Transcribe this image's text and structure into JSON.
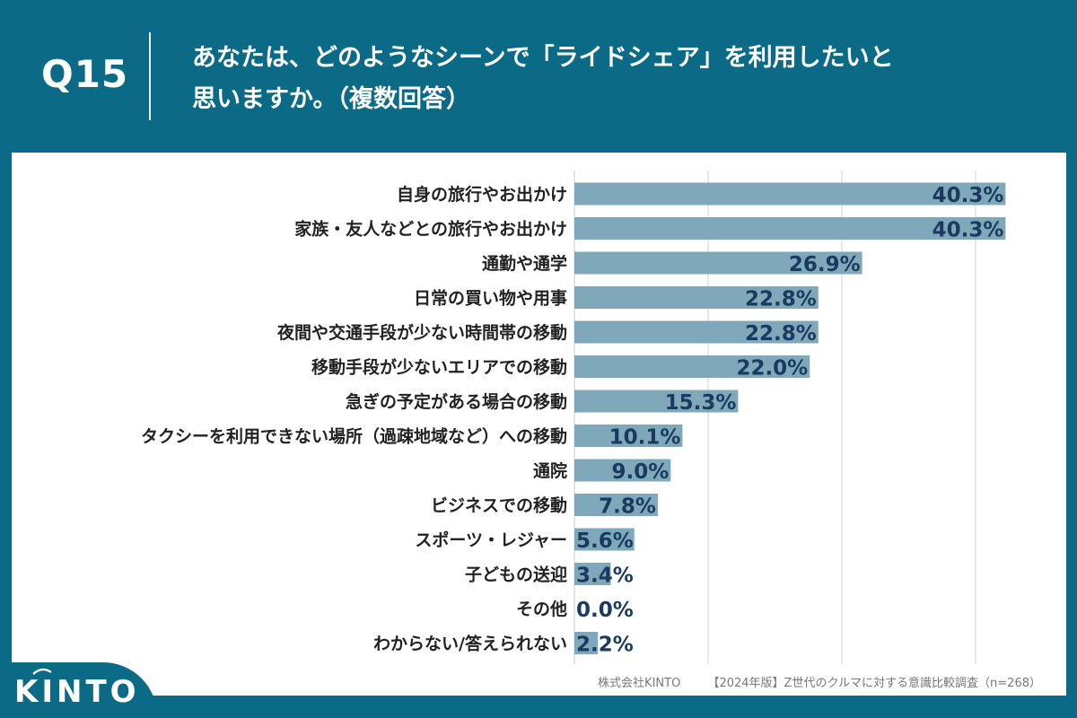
{
  "header": {
    "question_number": "Q15",
    "title_line1": "あなたは、どのようなシーンで「ライドシェア」を利用したいと",
    "title_line2": "思いますか。（複数回答）"
  },
  "footer": {
    "company": "株式会社KINTO",
    "survey": "【2024年版】Z世代のクルマに対する意識比較調査（n=268）"
  },
  "logo": {
    "text": "KINTO"
  },
  "colors": {
    "background": "#0b6a86",
    "panel": "#ffffff",
    "bar": "#7fa8ba",
    "value_text": "#1a3a5e",
    "grid": "#d0d0d0"
  },
  "chart_data": {
    "type": "bar",
    "orientation": "horizontal",
    "categories": [
      "自身の旅行やお出かけ",
      "家族・友人などとの旅行やお出かけ",
      "通勤や通学",
      "日常の買い物や用事",
      "夜間や交通手段が少ない時間帯の移動",
      "移動手段が少ないエリアでの移動",
      "急ぎの予定がある場合の移動",
      "タクシーを利用できない場所（過疎地域など）への移動",
      "通院",
      "ビジネスでの移動",
      "スポーツ・レジャー",
      "子どもの送迎",
      "その他",
      "わからない/答えられない"
    ],
    "values": [
      40.3,
      40.3,
      26.9,
      22.8,
      22.8,
      22.0,
      15.3,
      10.1,
      9.0,
      7.8,
      5.6,
      3.4,
      0.0,
      2.2
    ],
    "value_labels": [
      "40.3%",
      "40.3%",
      "26.9%",
      "22.8%",
      "22.8%",
      "22.0%",
      "15.3%",
      "10.1%",
      "9.0%",
      "7.8%",
      "5.6%",
      "3.4%",
      "0.0%",
      "2.2%"
    ],
    "xlim": [
      0,
      50
    ],
    "grid_values": [
      12.5,
      25,
      37.5,
      50
    ],
    "unit": "%",
    "grid": true,
    "legend": "none"
  }
}
